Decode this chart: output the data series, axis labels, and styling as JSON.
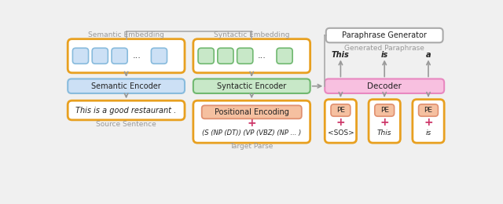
{
  "fig_bg": "#f0f0f0",
  "sem_embed_label": "Semantic Embedding",
  "sem_encoder_label": "Semantic Encoder",
  "source_sentence": "This is a good restaurant .",
  "source_label": "Source Sentence",
  "syn_embed_label": "Syntactic Embedding",
  "syn_encoder_label": "Syntactic Encoder",
  "pos_enc_label": "Positional Encoding",
  "target_parse_text": "(S (NP (DT)) (VP (VBZ) (NP ... )",
  "target_label": "Target Parse",
  "paraphrase_gen_label": "Paraphrase Generator",
  "gen_paraphrase_label": "Generated Paraphrase",
  "decoder_label": "Decoder",
  "output_words": [
    "This",
    "is",
    "a"
  ],
  "input_tokens": [
    "<SOS>",
    "This",
    "is"
  ],
  "pe_label": "PE",
  "color_yellow_border": "#e8a020",
  "color_blue_fill": "#cce0f5",
  "color_blue_border": "#88bbdd",
  "color_green_fill": "#c8e8c8",
  "color_green_border": "#70b870",
  "color_pink_fill": "#f8c0e0",
  "color_pink_border": "#e888c0",
  "color_salmon_fill": "#f5c0a0",
  "color_salmon_border": "#e09070",
  "color_white_fill": "#ffffff",
  "color_gray_border": "#aaaaaa",
  "color_arrow": "#999999",
  "color_text_dark": "#222222",
  "color_text_gray": "#999999",
  "color_plus": "#cc3366"
}
